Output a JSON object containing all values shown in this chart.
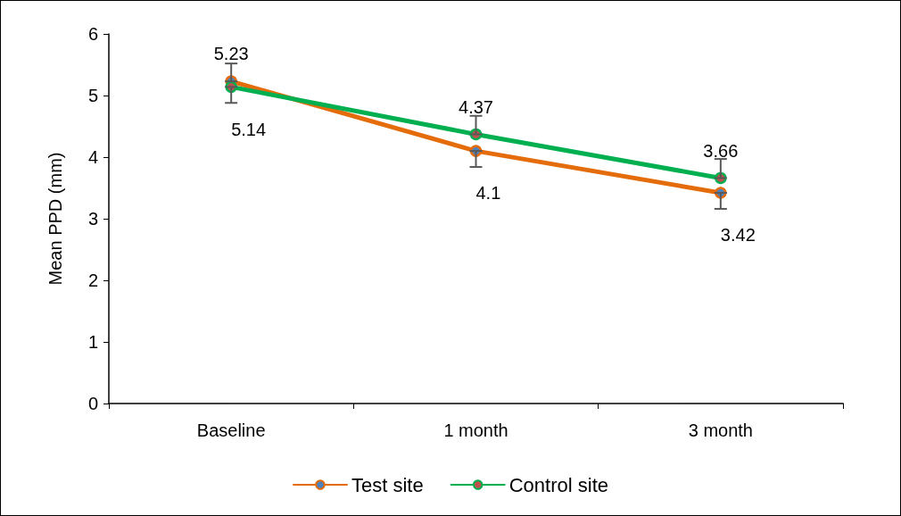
{
  "chart_data": {
    "type": "line",
    "ylabel": "Mean PPD (mm)",
    "categories": [
      "Baseline",
      "1 month",
      "3 month"
    ],
    "series": [
      {
        "name": "Test site",
        "color": "#e46c0a",
        "values": [
          5.23,
          4.1,
          3.42
        ],
        "errors": [
          [
            5.23,
            5.52
          ],
          [
            3.84,
            4.1
          ],
          [
            3.16,
            3.42
          ]
        ]
      },
      {
        "name": "Control site",
        "color": "#00b050",
        "values": [
          5.14,
          4.37,
          3.66
        ],
        "errors": [
          [
            4.88,
            5.14
          ],
          [
            4.37,
            4.67
          ],
          [
            3.66,
            3.97
          ]
        ]
      }
    ],
    "ylim": [
      0,
      6
    ],
    "yticks": [
      0,
      1,
      2,
      3,
      4,
      5,
      6
    ],
    "grid": false,
    "legend": "bottom",
    "marker": "circle",
    "line_style": "solid",
    "data_labels": true
  }
}
